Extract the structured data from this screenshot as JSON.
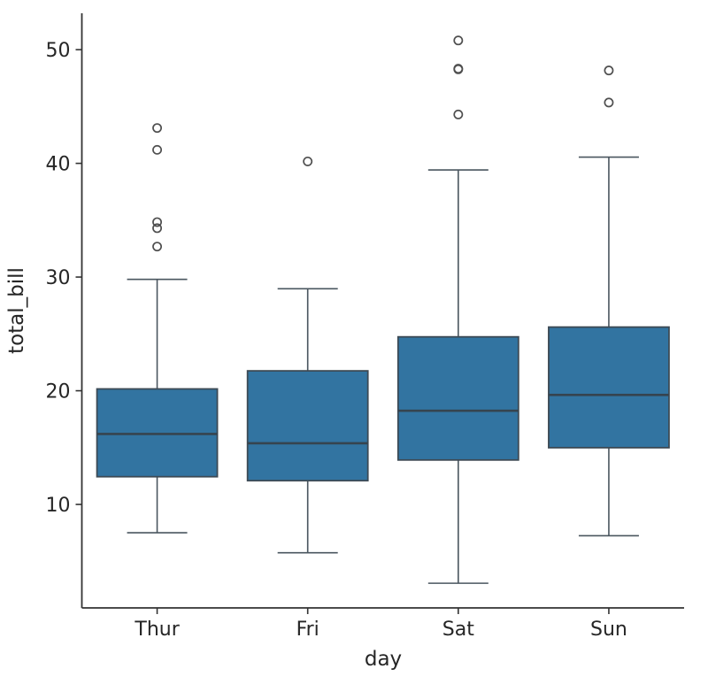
{
  "chart_data": {
    "type": "box",
    "title": "",
    "xlabel": "day",
    "ylabel": "total_bill",
    "categories": [
      "Thur",
      "Fri",
      "Sat",
      "Sun"
    ],
    "yticks": [
      10,
      20,
      30,
      40,
      50
    ],
    "ylim": [
      0.9,
      53.2
    ],
    "grid": false,
    "legend": "none",
    "colors": {
      "box_fill": "#3274a1",
      "box_edge": "#3d4a55",
      "whisker": "#4a565f",
      "median": "#36444f",
      "flier_edge": "#4f4f4f",
      "spine": "#333333",
      "tick": "#333333",
      "text": "#262626",
      "background": "#ffffff"
    },
    "boxes": [
      {
        "category": "Thur",
        "whisker_low": 7.51,
        "q1": 12.44,
        "median": 16.2,
        "q3": 20.16,
        "whisker_high": 29.8,
        "outliers": [
          32.68,
          34.3,
          34.83,
          41.19,
          43.11
        ]
      },
      {
        "category": "Fri",
        "whisker_low": 5.75,
        "q1": 12.09,
        "median": 15.38,
        "q3": 21.75,
        "whisker_high": 28.97,
        "outliers": [
          40.17
        ]
      },
      {
        "category": "Sat",
        "whisker_low": 3.07,
        "q1": 13.91,
        "median": 18.24,
        "q3": 24.74,
        "whisker_high": 39.42,
        "outliers": [
          44.3,
          48.27,
          48.33,
          50.81
        ]
      },
      {
        "category": "Sun",
        "whisker_low": 7.25,
        "q1": 14.99,
        "median": 19.63,
        "q3": 25.6,
        "whisker_high": 40.55,
        "outliers": [
          45.35,
          48.17
        ]
      }
    ]
  }
}
